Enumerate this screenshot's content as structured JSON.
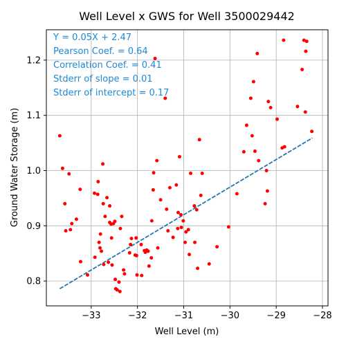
{
  "chart_data": {
    "type": "scatter",
    "title": "Well Level x GWS for Well 3500029442",
    "xlabel": "Well Level (m)",
    "ylabel": "Ground Water Storage (m)",
    "xlim": [
      -33.97,
      -27.88
    ],
    "ylim": [
      0.755,
      1.255
    ],
    "xticks": [
      -33,
      -32,
      -31,
      -30,
      -29,
      -28
    ],
    "xtick_labels": [
      "−33",
      "−32",
      "−31",
      "−30",
      "−29",
      "−28"
    ],
    "yticks": [
      0.8,
      0.9,
      1.0,
      1.1,
      1.2
    ],
    "ytick_labels": [
      "0.8",
      "0.9",
      "1.0",
      "1.1",
      "1.2"
    ],
    "grid": true,
    "annotation_lines": [
      "Y = 0.05X + 2.47",
      "Pearson Coef. = 0.64",
      "Correlation Coef. = 0.41",
      "Stderr of slope = 0.01",
      "Stderr of intercept = 0.17"
    ],
    "colors": {
      "points": "#ff0000",
      "fit_line": "#1f77b4",
      "annotation": "#1f88d4",
      "grid": "#b0b0b0"
    },
    "fit": {
      "slope": 0.05,
      "intercept": 2.47,
      "x_range": [
        -33.68,
        -28.22
      ],
      "style": "dashed"
    },
    "points": [
      [
        -33.68,
        1.063
      ],
      [
        -33.62,
        1.004
      ],
      [
        -33.57,
        0.94
      ],
      [
        -33.55,
        0.891
      ],
      [
        -33.48,
        0.994
      ],
      [
        -33.45,
        0.893
      ],
      [
        -33.42,
        0.904
      ],
      [
        -33.32,
        0.912
      ],
      [
        -33.24,
        0.966
      ],
      [
        -33.23,
        0.835
      ],
      [
        -33.08,
        0.811
      ],
      [
        -32.93,
        0.959
      ],
      [
        -32.92,
        0.843
      ],
      [
        -32.86,
        0.957
      ],
      [
        -32.85,
        0.98
      ],
      [
        -32.83,
        0.87
      ],
      [
        -32.81,
        0.86
      ],
      [
        -32.8,
        0.885
      ],
      [
        -32.78,
        0.854
      ],
      [
        -32.75,
        1.012
      ],
      [
        -32.74,
        0.94
      ],
      [
        -32.73,
        0.83
      ],
      [
        -32.7,
        0.917
      ],
      [
        -32.66,
        0.951
      ],
      [
        -32.63,
        0.834
      ],
      [
        -32.6,
        0.936
      ],
      [
        -32.6,
        0.906
      ],
      [
        -32.57,
        0.903
      ],
      [
        -32.56,
        0.878
      ],
      [
        -32.55,
        0.829
      ],
      [
        -32.52,
        0.904
      ],
      [
        -32.49,
        0.908
      ],
      [
        -32.48,
        0.803
      ],
      [
        -32.47,
        0.786
      ],
      [
        -32.44,
        0.784
      ],
      [
        -32.4,
        0.798
      ],
      [
        -32.38,
        0.781
      ],
      [
        -32.37,
        0.895
      ],
      [
        -32.34,
        0.917
      ],
      [
        -32.3,
        0.82
      ],
      [
        -32.28,
        0.813
      ],
      [
        -32.17,
        0.851
      ],
      [
        -32.15,
        0.866
      ],
      [
        -32.13,
        0.877
      ],
      [
        -32.05,
        0.847
      ],
      [
        -32.03,
        0.878
      ],
      [
        -32.02,
        0.846
      ],
      [
        -32.01,
        0.811
      ],
      [
        -31.92,
        0.866
      ],
      [
        -31.91,
        0.81
      ],
      [
        -31.85,
        0.855
      ],
      [
        -31.83,
        0.852
      ],
      [
        -31.8,
        0.856
      ],
      [
        -31.77,
        0.854
      ],
      [
        -31.75,
        0.827
      ],
      [
        -31.7,
        0.842
      ],
      [
        -31.69,
        0.909
      ],
      [
        -31.66,
        0.965
      ],
      [
        -31.65,
        0.996
      ],
      [
        -31.62,
        1.203
      ],
      [
        -31.58,
        1.018
      ],
      [
        -31.56,
        0.86
      ],
      [
        -31.5,
        0.947
      ],
      [
        -31.4,
        1.131
      ],
      [
        -31.37,
        0.93
      ],
      [
        -31.34,
        0.891
      ],
      [
        -31.3,
        0.969
      ],
      [
        -31.23,
        0.879
      ],
      [
        -31.16,
        0.974
      ],
      [
        -31.13,
        0.895
      ],
      [
        -31.12,
        0.924
      ],
      [
        -31.09,
        1.025
      ],
      [
        -31.06,
        0.92
      ],
      [
        -31.05,
        0.897
      ],
      [
        -31.01,
        0.909
      ],
      [
        -30.97,
        0.87
      ],
      [
        -30.95,
        0.889
      ],
      [
        -30.9,
        0.893
      ],
      [
        -30.88,
        0.848
      ],
      [
        -30.85,
        0.995
      ],
      [
        -30.77,
        0.936
      ],
      [
        -30.76,
        0.87
      ],
      [
        -30.72,
        0.929
      ],
      [
        -30.7,
        0.823
      ],
      [
        -30.66,
        1.056
      ],
      [
        -30.63,
        0.955
      ],
      [
        -30.6,
        0.995
      ],
      [
        -30.45,
        0.831
      ],
      [
        -30.28,
        0.862
      ],
      [
        -30.03,
        0.898
      ],
      [
        -29.85,
        0.958
      ],
      [
        -29.7,
        1.034
      ],
      [
        -29.64,
        1.082
      ],
      [
        -29.55,
        1.131
      ],
      [
        -29.52,
        1.063
      ],
      [
        -29.49,
        1.161
      ],
      [
        -29.46,
        1.035
      ],
      [
        -29.41,
        1.212
      ],
      [
        -29.38,
        1.018
      ],
      [
        -29.24,
        0.94
      ],
      [
        -29.21,
        1.0
      ],
      [
        -29.19,
        0.963
      ],
      [
        -29.17,
        1.125
      ],
      [
        -29.12,
        1.114
      ],
      [
        -28.98,
        1.093
      ],
      [
        -28.87,
        1.041
      ],
      [
        -28.84,
        1.236
      ],
      [
        -28.82,
        1.043
      ],
      [
        -28.54,
        1.116
      ],
      [
        -28.44,
        1.183
      ],
      [
        -28.4,
        1.236
      ],
      [
        -28.37,
        1.106
      ],
      [
        -28.36,
        1.216
      ],
      [
        -28.34,
        1.234
      ],
      [
        -28.23,
        1.071
      ]
    ]
  }
}
